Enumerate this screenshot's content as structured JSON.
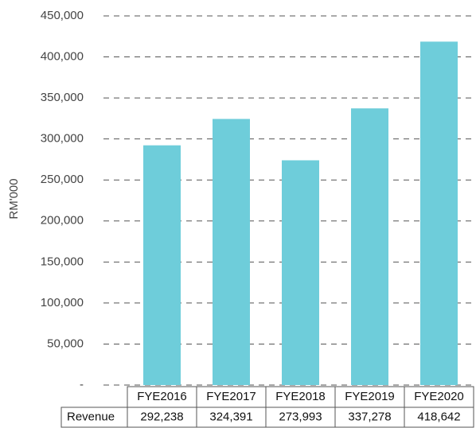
{
  "chart_data": {
    "type": "bar",
    "y_label": "RM'000",
    "categories": [
      "FYE2016",
      "FYE2017",
      "FYE2018",
      "FYE2019",
      "FYE2020"
    ],
    "series": [
      {
        "name": "Revenue",
        "color": "#6ecdda",
        "values": [
          292238,
          324391,
          273993,
          337278,
          418642
        ],
        "value_labels": [
          "292,238",
          "324,391",
          "273,993",
          "337,278",
          "418,642"
        ]
      }
    ],
    "ylim": [
      0,
      450000
    ],
    "yticks": [
      {
        "value": 0,
        "label": "-"
      },
      {
        "value": 50000,
        "label": "50,000"
      },
      {
        "value": 100000,
        "label": "100,000"
      },
      {
        "value": 150000,
        "label": "150,000"
      },
      {
        "value": 200000,
        "label": "200,000"
      },
      {
        "value": 250000,
        "label": "250,000"
      },
      {
        "value": 300000,
        "label": "300,000"
      },
      {
        "value": 350000,
        "label": "350,000"
      },
      {
        "value": 400000,
        "label": "400,000"
      },
      {
        "value": 450000,
        "label": "450,000"
      }
    ],
    "grid": true
  }
}
